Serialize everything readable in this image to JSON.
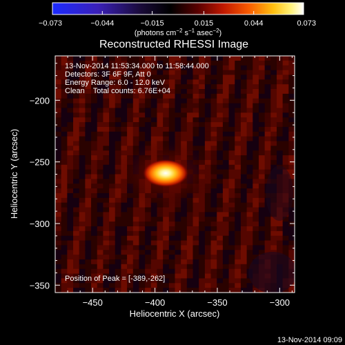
{
  "chart_data": {
    "type": "heatmap",
    "title": "Reconstructed RHESSI Image",
    "xlabel": "Heliocentric X (arcsec)",
    "ylabel": "Heliocentric Y (arcsec)",
    "xlim": [
      -480,
      -288
    ],
    "ylim": [
      -356,
      -164
    ],
    "x_ticks": [
      -450,
      -400,
      -350,
      -300
    ],
    "y_ticks": [
      -350,
      -300,
      -250,
      -200
    ],
    "x_tick_labels": [
      "−450",
      "−400",
      "−350",
      "−300"
    ],
    "y_tick_labels": [
      "−350",
      "−300",
      "−250",
      "−200"
    ],
    "colorbar": {
      "min": -0.073,
      "max": 0.073,
      "ticks": [
        -0.073,
        -0.044,
        -0.015,
        0.015,
        0.044,
        0.073
      ],
      "tick_labels": [
        "−0.073",
        "−0.044",
        "−0.015",
        "0.015",
        "0.044",
        "0.073"
      ],
      "label_prefix": "(photons cm",
      "label_exp1": "−2",
      "label_mid1": " s",
      "label_exp2": "−1",
      "label_mid2": " asec",
      "label_exp3": "−2",
      "label_suffix": ")",
      "colormap": "blue-black-red-yellow-white"
    },
    "peak": {
      "x": -389,
      "y": -262,
      "value": 0.073
    },
    "annotations": [
      "13-Nov-2014 11:53:34.000 to 11:58:44.000",
      "Detectors: 3F 6F 9F, Att 0",
      "Energy Range: 6.0 - 12.0 keV",
      "Clean    Total counts: 6.76E+04"
    ],
    "peak_label": "Position of Peak = [-389,-262]",
    "grid": false
  },
  "timestamp": "13-Nov-2014 09:09"
}
